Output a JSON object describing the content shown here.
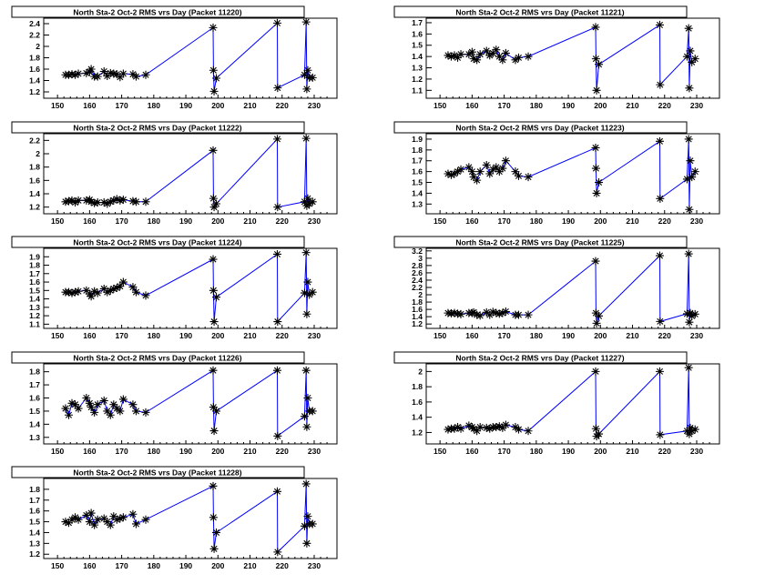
{
  "chart_data": [
    {
      "type": "line",
      "title": "North Sta-2 Oct-2 RMS vrs Day (Packet 11220)",
      "xlim": [
        145.7,
        237.1
      ],
      "ylim": [
        1.088,
        2.496
      ],
      "xticks": [
        150,
        160,
        170,
        180,
        190,
        200,
        210,
        220,
        230
      ],
      "yticks": [
        1.2,
        1.4,
        1.6,
        1.8,
        2,
        2.2,
        2.4
      ],
      "x": [
        152.5,
        153.5,
        154.5,
        155.5,
        156.5,
        159,
        160,
        160.5,
        161.5,
        162.5,
        164.5,
        165.5,
        166.5,
        167.5,
        168.5,
        169.5,
        170.5,
        173.5,
        174.5,
        177.5,
        198.5,
        198.6,
        198.8,
        199.5,
        218.5,
        218.6,
        227,
        227.5,
        227.7,
        228,
        228.5,
        229.5
      ],
      "y": [
        1.5,
        1.5,
        1.51,
        1.5,
        1.52,
        1.53,
        1.55,
        1.6,
        1.47,
        1.47,
        1.56,
        1.48,
        1.53,
        1.52,
        1.51,
        1.46,
        1.52,
        1.51,
        1.47,
        1.5,
        2.33,
        1.58,
        1.21,
        1.44,
        2.41,
        1.27,
        1.5,
        2.43,
        1.25,
        1.58,
        1.45,
        1.45
      ]
    },
    {
      "type": "line",
      "title": "North Sta-2 Oct-2 RMS vrs Day (Packet 11221)",
      "xlim": [
        145.7,
        237.1
      ],
      "ylim": [
        1.03,
        1.74
      ],
      "xticks": [
        150,
        160,
        170,
        180,
        190,
        200,
        210,
        220,
        230
      ],
      "yticks": [
        1.1,
        1.2,
        1.3,
        1.4,
        1.5,
        1.6,
        1.7
      ],
      "x": [
        152.5,
        153.5,
        154.5,
        155.5,
        156.5,
        159,
        160,
        160.5,
        161.5,
        162.5,
        164.5,
        165.5,
        166.5,
        167.5,
        168.5,
        169.5,
        170.5,
        173.5,
        174.5,
        177.5,
        198.5,
        198.6,
        198.8,
        199.5,
        218.5,
        218.6,
        227,
        227.5,
        227.7,
        228,
        228.5,
        229.5
      ],
      "y": [
        1.41,
        1.4,
        1.41,
        1.39,
        1.42,
        1.42,
        1.44,
        1.38,
        1.37,
        1.42,
        1.45,
        1.41,
        1.43,
        1.46,
        1.4,
        1.37,
        1.43,
        1.37,
        1.39,
        1.4,
        1.66,
        1.38,
        1.1,
        1.33,
        1.68,
        1.15,
        1.4,
        1.65,
        1.12,
        1.45,
        1.35,
        1.38
      ]
    },
    {
      "type": "line",
      "title": "North Sta-2 Oct-2 RMS vrs Day (Packet 11222)",
      "xlim": [
        145.7,
        237.1
      ],
      "ylim": [
        1.1,
        2.3
      ],
      "xticks": [
        150,
        160,
        170,
        180,
        190,
        200,
        210,
        220,
        230
      ],
      "yticks": [
        1.2,
        1.4,
        1.6,
        1.8,
        2,
        2.2
      ],
      "x": [
        152.5,
        153.5,
        154.5,
        155.5,
        156.5,
        159,
        160,
        160.5,
        161.5,
        162.5,
        164.5,
        165.5,
        166.5,
        167.5,
        168.5,
        169.5,
        170.5,
        173.5,
        174.5,
        177.5,
        198.5,
        198.6,
        198.8,
        199.5,
        218.5,
        218.6,
        227,
        227.5,
        227.7,
        228,
        228.5,
        229.5
      ],
      "y": [
        1.28,
        1.29,
        1.3,
        1.27,
        1.3,
        1.3,
        1.31,
        1.28,
        1.26,
        1.27,
        1.27,
        1.25,
        1.28,
        1.3,
        1.32,
        1.3,
        1.31,
        1.29,
        1.28,
        1.28,
        2.05,
        1.33,
        1.2,
        1.25,
        2.22,
        1.2,
        1.28,
        2.23,
        1.22,
        1.33,
        1.25,
        1.28
      ]
    },
    {
      "type": "line",
      "title": "North Sta-2 Oct-2 RMS vrs Day (Packet 11223)",
      "xlim": [
        145.7,
        237.1
      ],
      "ylim": [
        1.21,
        1.95
      ],
      "xticks": [
        150,
        160,
        170,
        180,
        190,
        200,
        210,
        220,
        230
      ],
      "yticks": [
        1.3,
        1.4,
        1.5,
        1.6,
        1.7,
        1.8,
        1.9
      ],
      "x": [
        152.5,
        153.5,
        154.5,
        155.5,
        156.5,
        159,
        160,
        160.5,
        161.5,
        162.5,
        164.5,
        165.5,
        166.5,
        167.5,
        168.5,
        169.5,
        170.5,
        173.5,
        174.5,
        177.5,
        198.5,
        198.6,
        198.8,
        199.5,
        218.5,
        218.6,
        227,
        227.5,
        227.7,
        228,
        228.5,
        229.5
      ],
      "y": [
        1.58,
        1.57,
        1.58,
        1.6,
        1.62,
        1.64,
        1.6,
        1.55,
        1.52,
        1.6,
        1.66,
        1.58,
        1.62,
        1.64,
        1.6,
        1.63,
        1.7,
        1.6,
        1.56,
        1.55,
        1.82,
        1.63,
        1.4,
        1.5,
        1.88,
        1.35,
        1.53,
        1.9,
        1.25,
        1.7,
        1.55,
        1.6
      ]
    },
    {
      "type": "line",
      "title": "North Sta-2 Oct-2 RMS vrs Day (Packet 11224)",
      "xlim": [
        145.7,
        237.1
      ],
      "ylim": [
        1.05,
        2.0
      ],
      "xticks": [
        150,
        160,
        170,
        180,
        190,
        200,
        210,
        220,
        230
      ],
      "yticks": [
        1.1,
        1.2,
        1.3,
        1.4,
        1.5,
        1.6,
        1.7,
        1.8,
        1.9
      ],
      "x": [
        152.5,
        153.5,
        154.5,
        155.5,
        156.5,
        159,
        160,
        160.5,
        161.5,
        162.5,
        164.5,
        165.5,
        166.5,
        167.5,
        168.5,
        169.5,
        170.5,
        173.5,
        174.5,
        177.5,
        198.5,
        198.6,
        198.8,
        199.5,
        218.5,
        218.6,
        227,
        227.5,
        227.7,
        228,
        228.5,
        229.5
      ],
      "y": [
        1.48,
        1.48,
        1.47,
        1.48,
        1.49,
        1.5,
        1.46,
        1.43,
        1.49,
        1.47,
        1.52,
        1.48,
        1.5,
        1.52,
        1.53,
        1.55,
        1.6,
        1.54,
        1.48,
        1.44,
        1.87,
        1.5,
        1.13,
        1.42,
        1.93,
        1.13,
        1.47,
        1.95,
        1.22,
        1.6,
        1.45,
        1.48
      ]
    },
    {
      "type": "line",
      "title": "North Sta-2 Oct-2 RMS vrs Day (Packet 11225)",
      "xlim": [
        145.7,
        237.1
      ],
      "ylim": [
        1.08,
        3.27
      ],
      "xticks": [
        150,
        160,
        170,
        180,
        190,
        200,
        210,
        220,
        230
      ],
      "yticks": [
        1.2,
        1.4,
        1.6,
        1.8,
        2,
        2.2,
        2.4,
        2.6,
        2.8,
        3,
        3.2
      ],
      "x": [
        152.5,
        153.5,
        154.5,
        155.5,
        156.5,
        159,
        160,
        160.5,
        161.5,
        162.5,
        164.5,
        165.5,
        166.5,
        167.5,
        168.5,
        169.5,
        170.5,
        173.5,
        174.5,
        177.5,
        198.5,
        198.6,
        198.8,
        199.5,
        218.5,
        218.6,
        227,
        227.5,
        227.7,
        228,
        228.5,
        229.5
      ],
      "y": [
        1.5,
        1.49,
        1.5,
        1.48,
        1.47,
        1.5,
        1.5,
        1.52,
        1.45,
        1.43,
        1.52,
        1.45,
        1.53,
        1.5,
        1.48,
        1.5,
        1.54,
        1.45,
        1.45,
        1.45,
        2.92,
        1.5,
        1.22,
        1.42,
        3.07,
        1.27,
        1.48,
        3.12,
        1.25,
        1.5,
        1.42,
        1.47
      ]
    },
    {
      "type": "line",
      "title": "North Sta-2 Oct-2 RMS vrs Day (Packet 11226)",
      "xlim": [
        145.7,
        237.1
      ],
      "ylim": [
        1.25,
        1.86
      ],
      "xticks": [
        150,
        160,
        170,
        180,
        190,
        200,
        210,
        220,
        230
      ],
      "yticks": [
        1.3,
        1.4,
        1.5,
        1.6,
        1.7,
        1.8
      ],
      "x": [
        152.5,
        153.5,
        154.5,
        155.5,
        156.5,
        159,
        160,
        160.5,
        161.5,
        162.5,
        164.5,
        165.5,
        166.5,
        167.5,
        168.5,
        169.5,
        170.5,
        173.5,
        174.5,
        177.5,
        198.5,
        198.6,
        198.8,
        199.5,
        218.5,
        218.6,
        227,
        227.5,
        227.7,
        228,
        228.5,
        229.5
      ],
      "y": [
        1.52,
        1.47,
        1.56,
        1.55,
        1.52,
        1.6,
        1.56,
        1.53,
        1.49,
        1.55,
        1.58,
        1.5,
        1.47,
        1.55,
        1.52,
        1.5,
        1.59,
        1.55,
        1.5,
        1.49,
        1.81,
        1.53,
        1.35,
        1.5,
        1.81,
        1.31,
        1.46,
        1.81,
        1.38,
        1.6,
        1.5,
        1.5
      ]
    },
    {
      "type": "line",
      "title": "North Sta-2 Oct-2 RMS vrs Day (Packet 11227)",
      "xlim": [
        145.7,
        237.1
      ],
      "ylim": [
        1.05,
        2.1
      ],
      "xticks": [
        150,
        160,
        170,
        180,
        190,
        200,
        210,
        220,
        230
      ],
      "yticks": [
        1.2,
        1.4,
        1.6,
        1.8,
        2
      ],
      "x": [
        152.5,
        153.5,
        154.5,
        155.5,
        156.5,
        159,
        160,
        160.5,
        161.5,
        162.5,
        164.5,
        165.5,
        166.5,
        167.5,
        168.5,
        169.5,
        170.5,
        173.5,
        174.5,
        177.5,
        198.5,
        198.6,
        198.8,
        199.5,
        218.5,
        218.6,
        227,
        227.5,
        227.7,
        228,
        228.5,
        229.5
      ],
      "y": [
        1.24,
        1.25,
        1.25,
        1.27,
        1.25,
        1.29,
        1.27,
        1.25,
        1.22,
        1.27,
        1.26,
        1.25,
        1.27,
        1.27,
        1.28,
        1.26,
        1.3,
        1.27,
        1.24,
        1.22,
        2.0,
        1.25,
        1.15,
        1.18,
        2.0,
        1.17,
        1.22,
        2.05,
        1.18,
        1.26,
        1.22,
        1.24
      ]
    },
    {
      "type": "line",
      "title": "North Sta-2 Oct-2 RMS vrs Day (Packet 11228)",
      "xlim": [
        145.7,
        237.1
      ],
      "ylim": [
        1.16,
        1.9
      ],
      "xticks": [
        150,
        160,
        170,
        180,
        190,
        200,
        210,
        220,
        230
      ],
      "yticks": [
        1.2,
        1.3,
        1.4,
        1.5,
        1.6,
        1.7,
        1.8
      ],
      "x": [
        152.5,
        153.5,
        154.5,
        155.5,
        156.5,
        159,
        160,
        160.5,
        161.5,
        162.5,
        164.5,
        165.5,
        166.5,
        167.5,
        168.5,
        169.5,
        170.5,
        173.5,
        174.5,
        177.5,
        198.5,
        198.6,
        198.8,
        199.5,
        218.5,
        218.6,
        227,
        227.5,
        227.7,
        228,
        228.5,
        229.5
      ],
      "y": [
        1.5,
        1.49,
        1.52,
        1.54,
        1.52,
        1.56,
        1.5,
        1.58,
        1.47,
        1.52,
        1.53,
        1.5,
        1.47,
        1.55,
        1.52,
        1.53,
        1.54,
        1.57,
        1.48,
        1.52,
        1.83,
        1.54,
        1.25,
        1.4,
        1.78,
        1.22,
        1.46,
        1.85,
        1.3,
        1.55,
        1.48,
        1.48
      ]
    }
  ],
  "colors": {
    "line": "#0000ff",
    "marker": "#000000",
    "frame": "#000000"
  }
}
